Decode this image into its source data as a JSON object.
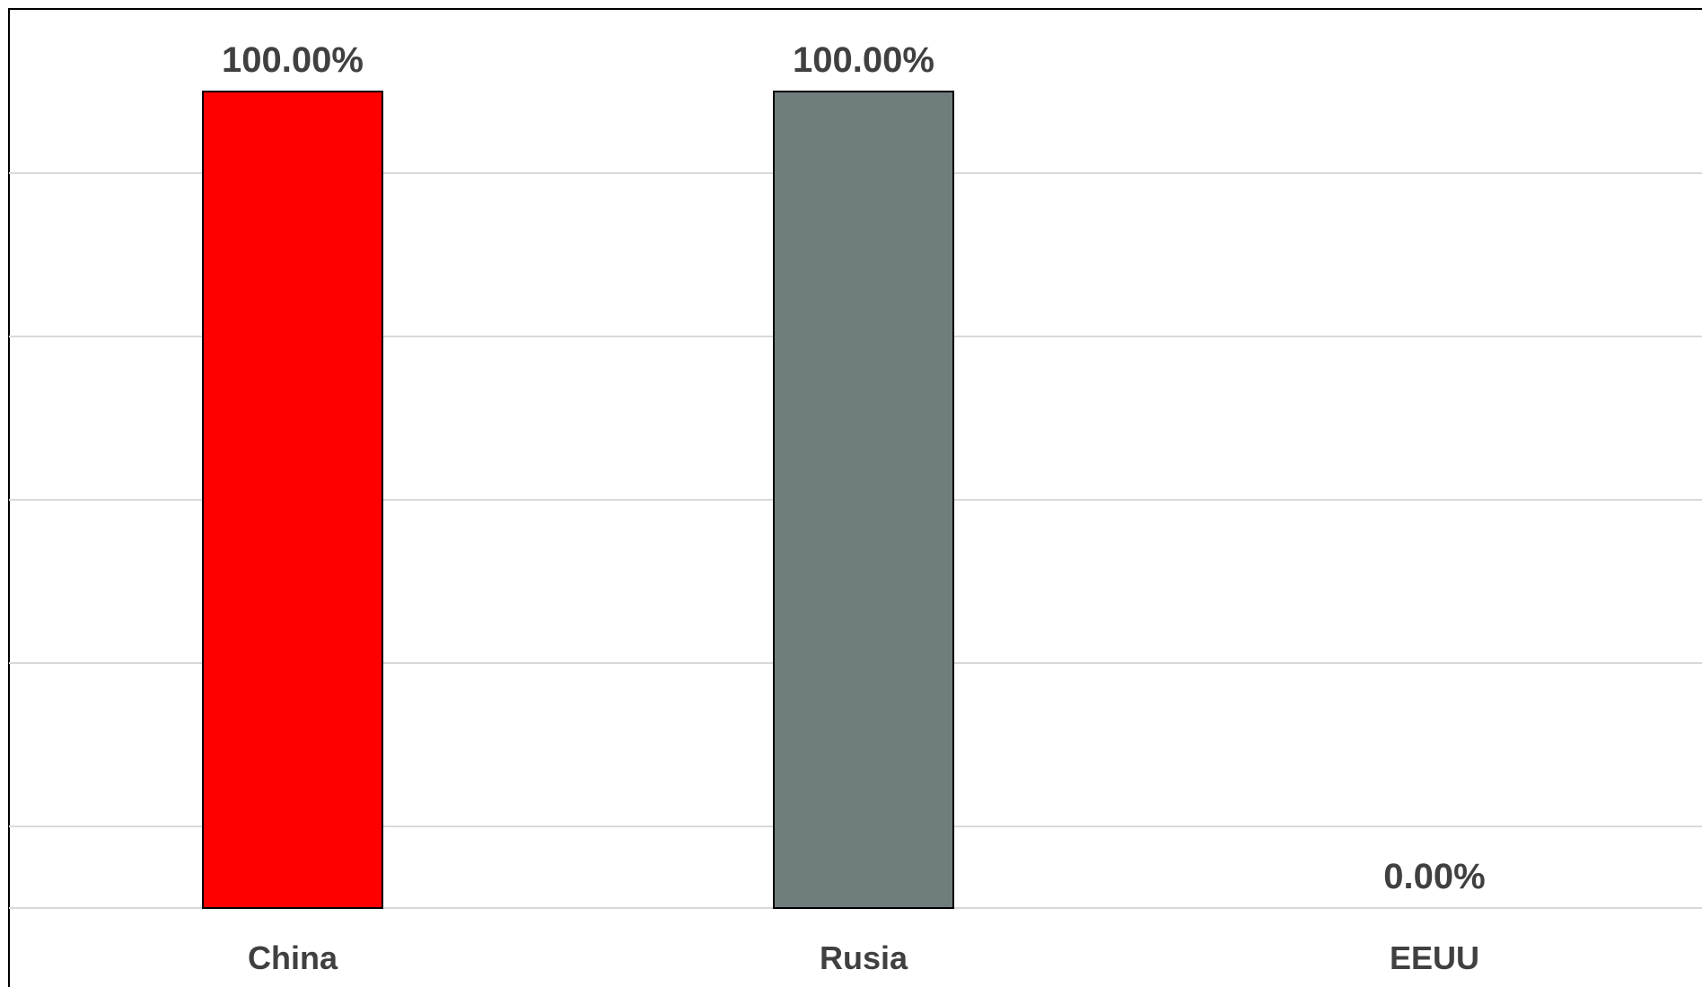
{
  "chart_data": {
    "type": "bar",
    "title": "",
    "xlabel": "",
    "ylabel": "",
    "categories": [
      "China",
      "Rusia",
      "EEUU"
    ],
    "values": [
      1.0,
      1.0,
      0.0
    ],
    "data_labels": [
      "100.00%",
      "100.00%",
      "0.00%"
    ],
    "ylim": [
      0,
      1.1
    ],
    "gridlines": [
      0.1,
      0.3,
      0.5,
      0.7,
      0.9
    ],
    "grid": true,
    "legend": "none",
    "colors": {
      "China": "#ff0000",
      "Rusia": "#6f7e7d",
      "EEUU": "#6f7e7d",
      "bar_outline": "#000000",
      "gridline": "#d9d9d9",
      "text": "#404040",
      "border": "#000000"
    }
  }
}
